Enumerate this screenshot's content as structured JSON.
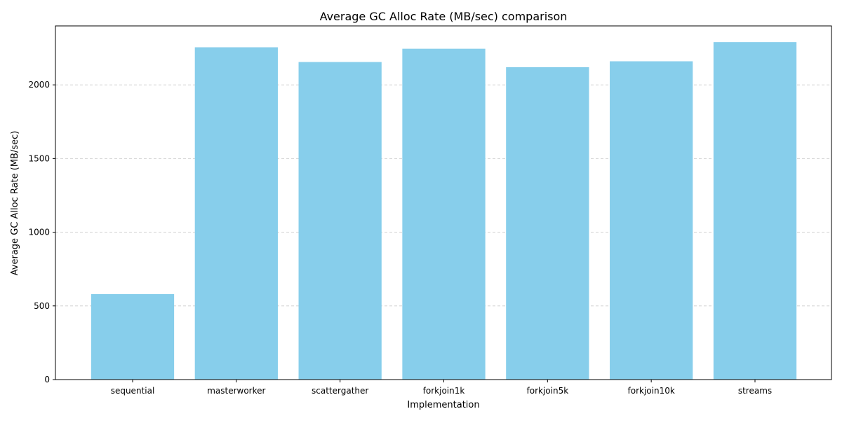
{
  "chart_data": {
    "type": "bar",
    "title": "Average GC Alloc Rate (MB/sec) comparison",
    "xlabel": "Implementation",
    "ylabel": "Average GC Alloc Rate (MB/sec)",
    "categories": [
      "sequential",
      "masterworker",
      "scattergather",
      "forkjoin1k",
      "forkjoin5k",
      "forkjoin10k",
      "streams"
    ],
    "values": [
      580,
      2255,
      2155,
      2245,
      2120,
      2160,
      2290
    ],
    "ylim": [
      0,
      2400
    ],
    "yticks": [
      0,
      500,
      1000,
      1500,
      2000
    ],
    "grid": "y, dashed",
    "bar_color": "#87ceeb"
  }
}
